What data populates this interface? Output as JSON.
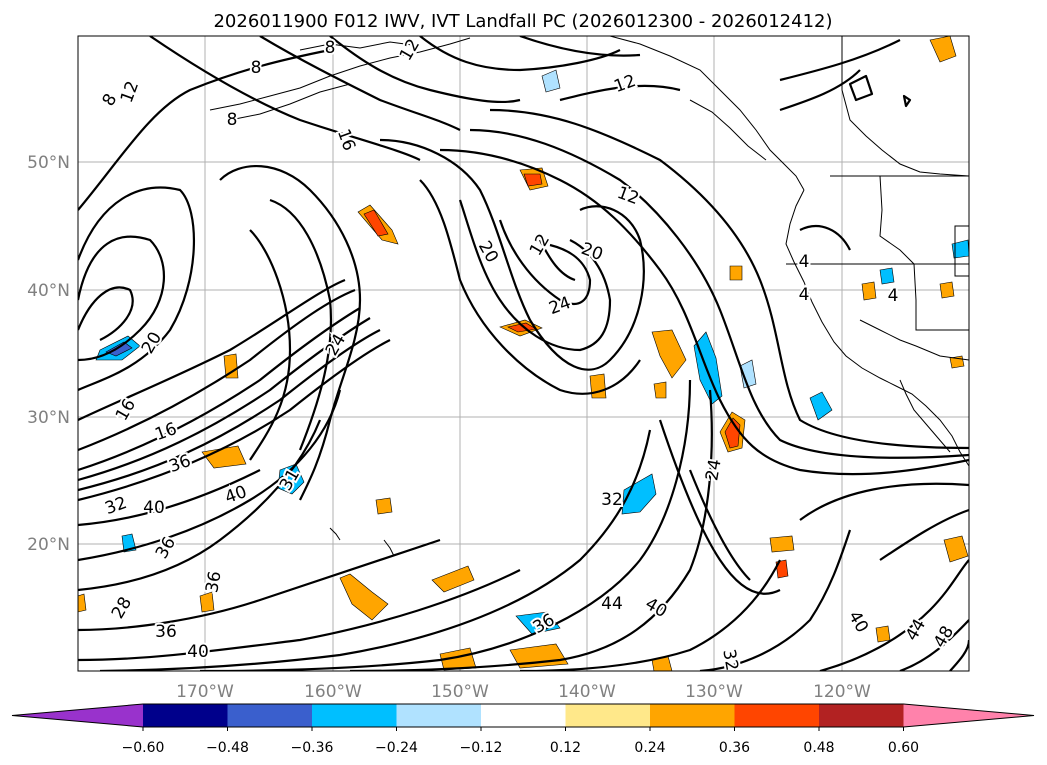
{
  "title": "2026011900 F012 IWV, IVT Landfall PC (2026012300 - 2026012412)",
  "map": {
    "lat_labels": [
      "50°N",
      "40°N",
      "30°N",
      "20°N"
    ],
    "lon_labels": [
      "170°W",
      "160°W",
      "150°W",
      "140°W",
      "130°W",
      "120°W"
    ],
    "contour_labels": [
      "8",
      "12",
      "8",
      "8",
      "16",
      "12",
      "8",
      "12",
      "12",
      "20",
      "20",
      "4",
      "4",
      "4",
      "20",
      "12",
      "24",
      "24",
      "16",
      "16",
      "36",
      "40",
      "40",
      "31",
      "32",
      "24",
      "32",
      "36",
      "28",
      "40",
      "36",
      "36",
      "44",
      "40",
      "36",
      "40",
      "44",
      "48",
      "32"
    ]
  },
  "colorbar": {
    "tick_labels": [
      "−0.60",
      "−0.48",
      "−0.36",
      "−0.24",
      "−0.12",
      "0.12",
      "0.24",
      "0.36",
      "0.48",
      "0.60"
    ],
    "colors": [
      "#9932cc",
      "#00008b",
      "#3a5fcd",
      "#00bfff",
      "#b0e2ff",
      "#ffffff",
      "#ffe88a",
      "#ffa500",
      "#ff4500",
      "#b22222",
      "#ff82ab"
    ]
  }
}
